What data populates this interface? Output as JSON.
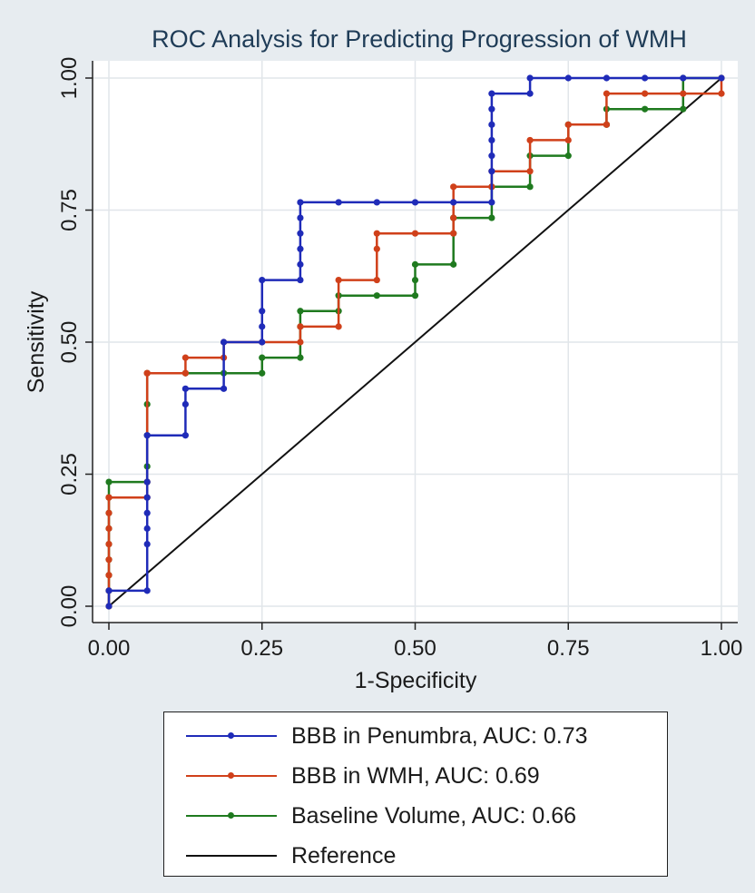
{
  "chart_data": {
    "type": "line",
    "title": "ROC Analysis for Predicting Progression of WMH",
    "xlabel": "1-Specificity",
    "ylabel": "Sensitivity",
    "xlim": [
      0,
      1
    ],
    "ylim": [
      0,
      1
    ],
    "xticks": [
      "0.00",
      "0.25",
      "0.50",
      "0.75",
      "1.00"
    ],
    "yticks": [
      "0.00",
      "0.25",
      "0.50",
      "0.75",
      "1.00"
    ],
    "grid": true,
    "legend_position": "bottom",
    "series": [
      {
        "name": "BBB in Penumbra, AUC: 0.73",
        "color": "#1f2bb8",
        "x": [
          0,
          0,
          0.0625,
          0.0625,
          0.0625,
          0.0625,
          0.0625,
          0.0625,
          0.0625,
          0.125,
          0.125,
          0.125,
          0.1875,
          0.1875,
          0.25,
          0.25,
          0.25,
          0.25,
          0.3125,
          0.3125,
          0.3125,
          0.3125,
          0.3125,
          0.3125,
          0.375,
          0.4375,
          0.5,
          0.5625,
          0.625,
          0.625,
          0.625,
          0.625,
          0.625,
          0.625,
          0.625,
          0.6875,
          0.6875,
          0.75,
          0.8125,
          0.875,
          0.9375,
          1
        ],
        "y": [
          0,
          0.0294,
          0.0294,
          0.1176,
          0.1471,
          0.1765,
          0.2059,
          0.2353,
          0.3235,
          0.3235,
          0.3824,
          0.4118,
          0.4118,
          0.5,
          0.5,
          0.5294,
          0.5588,
          0.6176,
          0.6176,
          0.6471,
          0.6765,
          0.7059,
          0.7353,
          0.7647,
          0.7647,
          0.7647,
          0.7647,
          0.7647,
          0.7647,
          0.8235,
          0.8529,
          0.8824,
          0.9118,
          0.9412,
          0.9706,
          0.9706,
          1,
          1,
          1,
          1,
          1,
          1
        ]
      },
      {
        "name": "BBB in WMH, AUC: 0.69",
        "color": "#d0401a",
        "x": [
          0,
          0,
          0,
          0,
          0,
          0,
          0,
          0,
          0,
          0.0625,
          0.0625,
          0.0625,
          0.0625,
          0.125,
          0.125,
          0.1875,
          0.1875,
          0.25,
          0.3125,
          0.3125,
          0.375,
          0.375,
          0.4375,
          0.4375,
          0.4375,
          0.5,
          0.5625,
          0.5625,
          0.5625,
          0.625,
          0.625,
          0.6875,
          0.6875,
          0.75,
          0.75,
          0.8125,
          0.8125,
          0.875,
          0.9375,
          1,
          1
        ],
        "y": [
          0,
          0.0294,
          0.0588,
          0.0882,
          0.1176,
          0.1471,
          0.1765,
          0.2059,
          0.2059,
          0.2059,
          0.2353,
          0.4412,
          0.4412,
          0.4412,
          0.4706,
          0.4706,
          0.5,
          0.5,
          0.5,
          0.5294,
          0.5294,
          0.6176,
          0.6176,
          0.6765,
          0.7059,
          0.7059,
          0.7059,
          0.7353,
          0.7941,
          0.7941,
          0.8235,
          0.8235,
          0.8824,
          0.8824,
          0.9118,
          0.9118,
          0.9706,
          0.9706,
          0.9706,
          0.9706,
          1
        ]
      },
      {
        "name": "Baseline Volume, AUC: 0.66",
        "color": "#1f7a1f",
        "x": [
          0,
          0,
          0,
          0,
          0,
          0,
          0,
          0,
          0,
          0.0625,
          0.0625,
          0.0625,
          0.0625,
          0.0625,
          0.125,
          0.1875,
          0.25,
          0.25,
          0.3125,
          0.3125,
          0.3125,
          0.375,
          0.375,
          0.4375,
          0.5,
          0.5,
          0.5,
          0.5625,
          0.5625,
          0.5625,
          0.5625,
          0.625,
          0.625,
          0.6875,
          0.6875,
          0.75,
          0.75,
          0.8125,
          0.8125,
          0.875,
          0.9375,
          0.9375,
          1
        ],
        "y": [
          0,
          0.0294,
          0.0588,
          0.0882,
          0.1176,
          0.1471,
          0.1765,
          0.2059,
          0.2353,
          0.2353,
          0.2647,
          0.3235,
          0.3824,
          0.4412,
          0.4412,
          0.4412,
          0.4412,
          0.4706,
          0.4706,
          0.5294,
          0.5588,
          0.5588,
          0.5882,
          0.5882,
          0.5882,
          0.6176,
          0.6471,
          0.6471,
          0.7059,
          0.7353,
          0.7353,
          0.7353,
          0.7941,
          0.7941,
          0.8529,
          0.8529,
          0.9118,
          0.9118,
          0.9412,
          0.9412,
          0.9412,
          1,
          1
        ]
      }
    ],
    "reference": {
      "name": "Reference",
      "color": "#111111",
      "x": [
        0,
        1
      ],
      "y": [
        0,
        1
      ]
    }
  }
}
